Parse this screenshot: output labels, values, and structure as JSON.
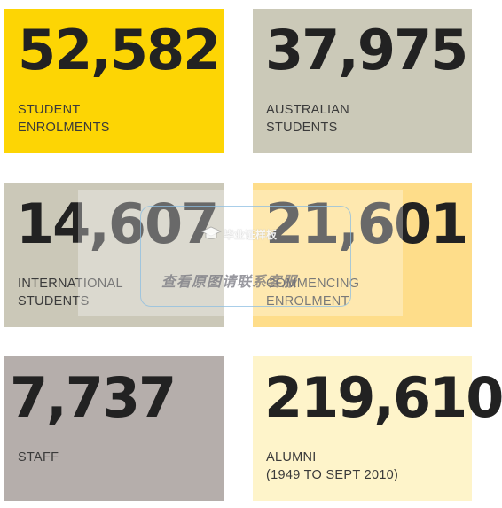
{
  "colors": {
    "yellow": "#fdd504",
    "stone": "#cbc9b8",
    "khaki": "#cbc8b8",
    "light_orange": "#fedd8a",
    "taupe": "#b5aeab",
    "cream": "#fef4ca",
    "text": "#222222"
  },
  "stats": [
    {
      "value": "52,582",
      "label_lines": [
        "STUDENT",
        "ENROLMENTS"
      ],
      "color": "#fdd504"
    },
    {
      "value": "37,975",
      "label_lines": [
        "AUSTRALIAN",
        "STUDENTS"
      ],
      "color": "#cbc9b8"
    },
    {
      "value": "14,607",
      "label_lines": [
        "INTERNATIONAL",
        "STUDENTS"
      ],
      "color": "#cbc8b8"
    },
    {
      "value": "21,601",
      "label_lines": [
        "COMMENCING",
        "ENROLMENT"
      ],
      "color": "#fedd8a"
    },
    {
      "value": "7,737",
      "label_lines": [
        "STAFF"
      ],
      "color": "#b5aeab"
    },
    {
      "value": "219,610",
      "label_lines": [
        "ALUMNI",
        "(1949 TO SEPT 2010)"
      ],
      "color": "#fef4ca"
    }
  ],
  "watermark": {
    "brand": "毕业证样板",
    "text": "查看原图请联系客服",
    "icon": "graduation-cap-icon"
  }
}
